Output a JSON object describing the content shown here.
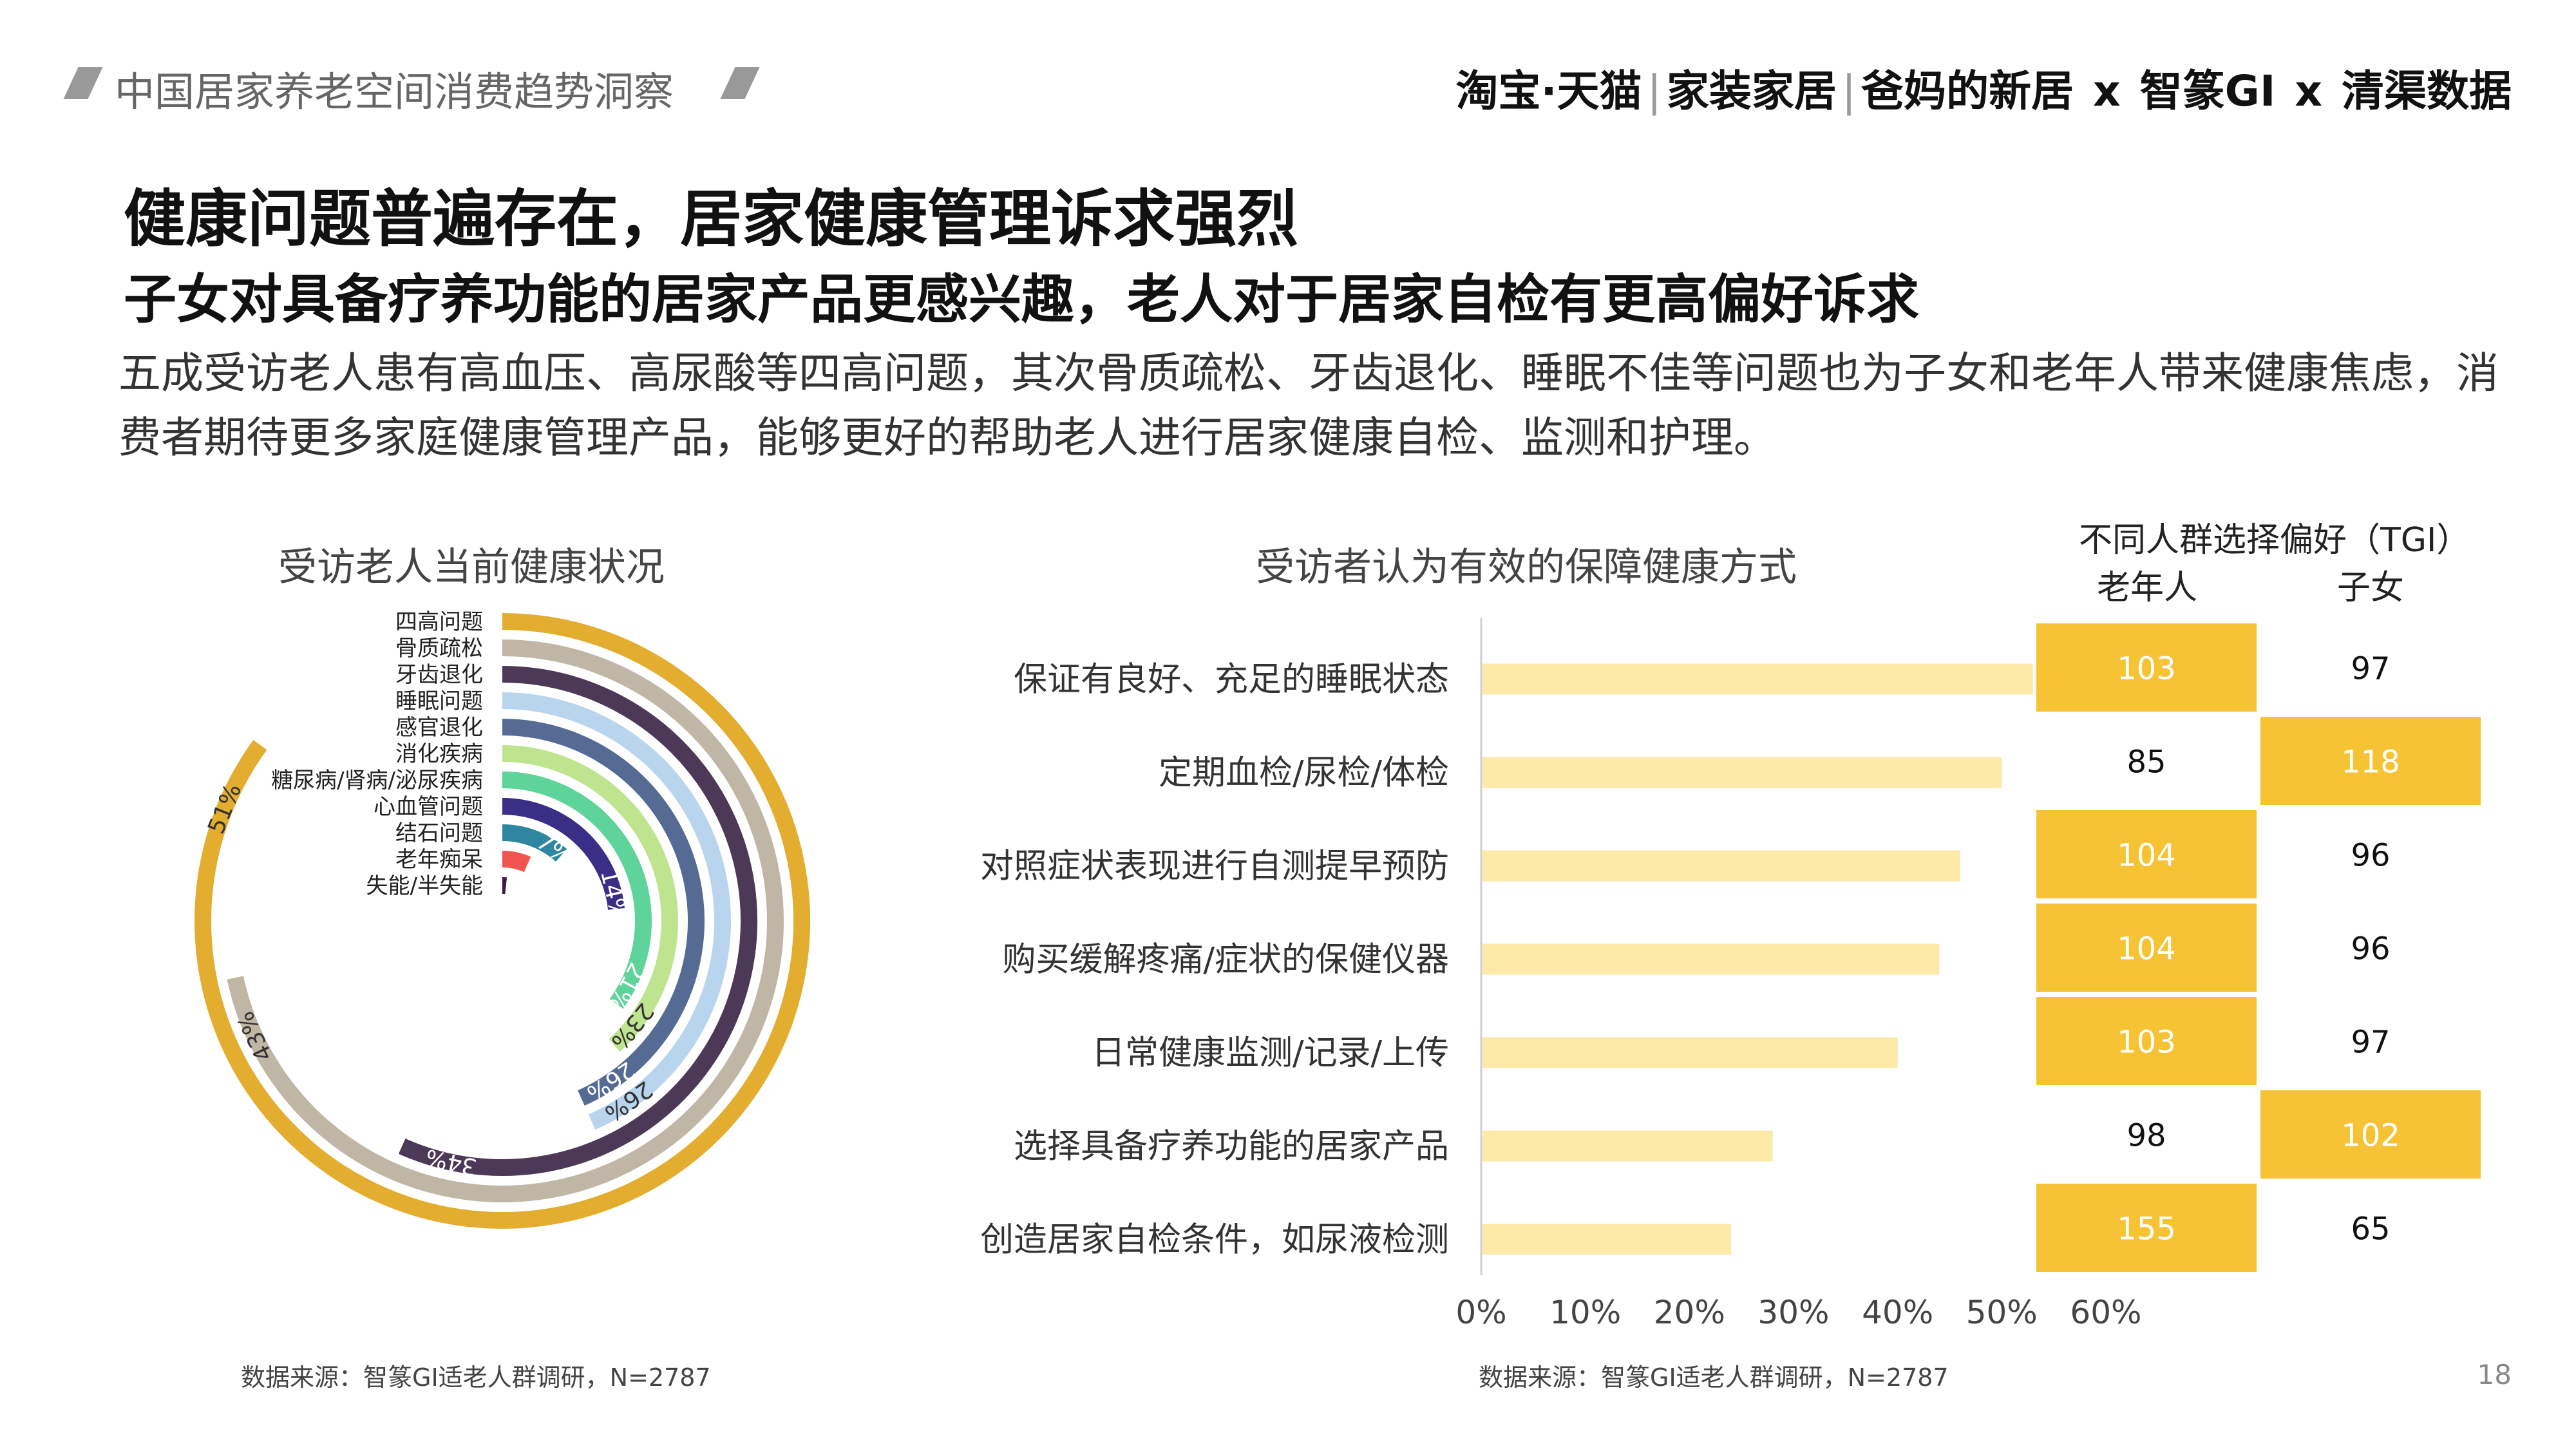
{
  "header": {
    "report_title": "中国居家养老空间消费趋势洞察",
    "brand_taobao": "淘宝·天猫",
    "brand_jiazhuang": "家装家居",
    "brand_bama": "爸妈的新居",
    "brand_x1": "x",
    "brand_zhizhuan": "智篆GI",
    "brand_x2": "x",
    "brand_qingqu": "清渠数据"
  },
  "headline": "健康问题普遍存在，居家健康管理诉求强烈",
  "subheadline": "子女对具备疗养功能的居家产品更感兴趣，老人对于居家自检有更高偏好诉求",
  "body_text": "五成受访老人患有高血压、高尿酸等四高问题，其次骨质疏松、牙齿退化、睡眠不佳等问题也为子女和老年人带来健康焦虑，消费者期待更多家庭健康管理产品，能够更好的帮助老人进行居家健康自检、监测和护理。",
  "left_source": "数据来源：智篆GI适老人群调研，N=2787",
  "right_source": "数据来源：智篆GI适老人群调研，N=2787",
  "page_number": "18",
  "tgi_title": "不同人群选择偏好（TGI）",
  "tgi_col_elder": "老年人",
  "tgi_col_child": "子女",
  "colors": {
    "highlight": "#F5C333",
    "bar": "#FDE9A8",
    "accent_gold": "#E3AD2F"
  },
  "chart_data": [
    {
      "type": "radial-bar",
      "title": "受访老人当前健康状况",
      "series": [
        {
          "name": "四高问题",
          "value": 51,
          "label": "51%",
          "color": "#E3AD2F"
        },
        {
          "name": "骨质疏松",
          "value": 43,
          "label": "43%",
          "color": "#BFB6A5"
        },
        {
          "name": "牙齿退化",
          "value": 34,
          "label": "34%",
          "color": "#4C3957"
        },
        {
          "name": "睡眠问题",
          "value": 26,
          "label": "26%",
          "color": "#B9D5EE"
        },
        {
          "name": "感官退化",
          "value": 26,
          "label": "26%",
          "color": "#566B94"
        },
        {
          "name": "消化疾病",
          "value": 23,
          "label": "23%",
          "color": "#BFE48F"
        },
        {
          "name": "糖尿病/肾病/泌尿疾病",
          "value": 21,
          "label": "21%",
          "color": "#5ED39A"
        },
        {
          "name": "心血管问题",
          "value": 14,
          "label": "14%",
          "color": "#3A2E86"
        },
        {
          "name": "结石问题",
          "value": 7,
          "label": "7%",
          "color": "#2F86A0"
        },
        {
          "name": "老年痴呆",
          "value": 4,
          "label": "",
          "color": "#F0554F"
        },
        {
          "name": "失能/半失能",
          "value": 1,
          "label": "",
          "color": "#3F1B44"
        }
      ]
    },
    {
      "type": "bar",
      "orientation": "horizontal",
      "title": "受访者认为有效的保障健康方式",
      "categories": [
        "保证有良好、充足的睡眠状态",
        "定期血检/尿检/体检",
        "对照症状表现进行自测提早预防",
        "购买缓解疼痛/症状的保健仪器",
        "日常健康监测/记录/上传",
        "选择具备疗养功能的居家产品",
        "创造居家自检条件，如尿液检测"
      ],
      "values": [
        53,
        50,
        46,
        44,
        40,
        28,
        24
      ],
      "xlim": [
        0,
        60
      ],
      "xticks": [
        "0%",
        "10%",
        "20%",
        "30%",
        "40%",
        "50%",
        "60%"
      ]
    },
    {
      "type": "table",
      "title": "不同人群选择偏好（TGI）",
      "columns": [
        "老年人",
        "子女"
      ],
      "rows": [
        {
          "elder": 103,
          "child": 97
        },
        {
          "elder": 85,
          "child": 118
        },
        {
          "elder": 104,
          "child": 96
        },
        {
          "elder": 104,
          "child": 96
        },
        {
          "elder": 103,
          "child": 97
        },
        {
          "elder": 98,
          "child": 102
        },
        {
          "elder": 155,
          "child": 65
        }
      ]
    }
  ]
}
